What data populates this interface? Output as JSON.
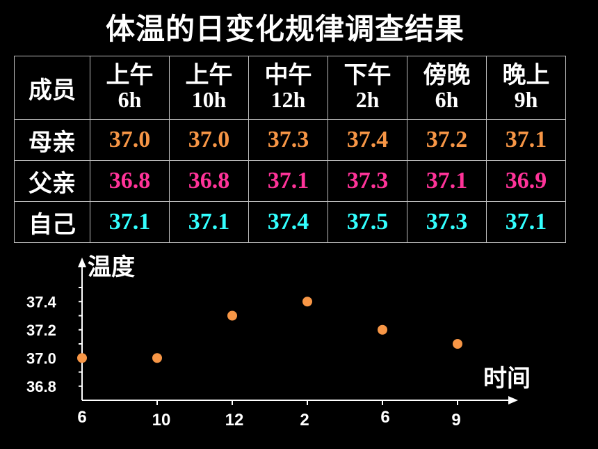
{
  "title": "体温的日变化规律调查结果",
  "table": {
    "corner": "成员",
    "columns": [
      {
        "period": "上午",
        "hour": "6h"
      },
      {
        "period": "上午",
        "hour": "10h"
      },
      {
        "period": "中午",
        "hour": "12h"
      },
      {
        "period": "下午",
        "hour": "2h"
      },
      {
        "period": "傍晚",
        "hour": "6h"
      },
      {
        "period": "晚上",
        "hour": "9h"
      }
    ],
    "rows": [
      {
        "member": "母亲",
        "values": [
          "37.0",
          "37.0",
          "37.3",
          "37.4",
          "37.2",
          "37.1"
        ],
        "color": "#f79646"
      },
      {
        "member": "父亲",
        "values": [
          "36.8",
          "36.8",
          "37.1",
          "37.3",
          "37.1",
          "36.9"
        ],
        "color": "#ff3399"
      },
      {
        "member": "自己",
        "values": [
          "37.1",
          "37.1",
          "37.4",
          "37.5",
          "37.3",
          "37.1"
        ],
        "color": "#33ffff"
      }
    ]
  },
  "chart_data": {
    "type": "scatter",
    "ylabel": "温度",
    "xlabel": "时间",
    "categories": [
      "6",
      "10",
      "12",
      "2",
      "6",
      "9"
    ],
    "y_ticks": [
      "37.4",
      "37.2",
      "37.0",
      "36.8"
    ],
    "series": [
      {
        "values": [
          37.0,
          37.0,
          37.3,
          37.4,
          37.2,
          37.1
        ],
        "color": "#f79646"
      }
    ],
    "ylim": [
      36.7,
      37.5
    ],
    "grid": false
  }
}
